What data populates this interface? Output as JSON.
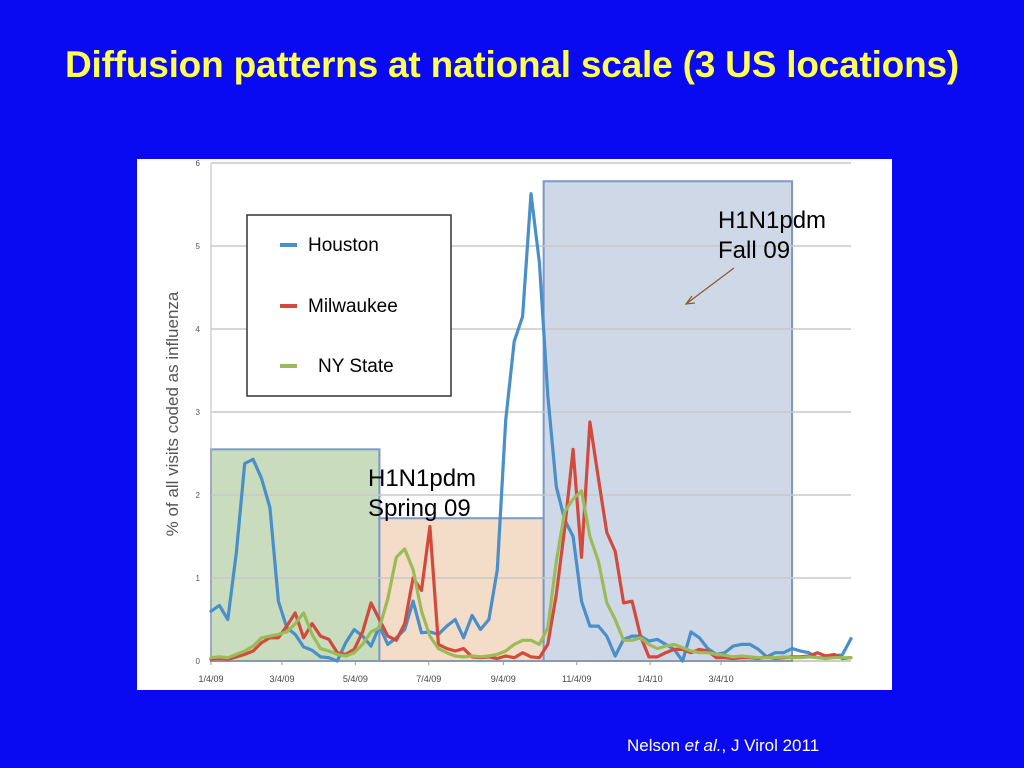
{
  "slide": {
    "title": "Diffusion patterns at national scale (3 US locations)",
    "background_color": "#0a0af2",
    "title_color": "#ffff55"
  },
  "annotations": {
    "fall_line1": "H1N1pdm",
    "fall_line2": "Fall 09",
    "spring_line1": "H1N1pdm",
    "spring_line2": "Spring 09"
  },
  "citation": {
    "author": "Nelson ",
    "etal": "et al.",
    "rest": ", J Virol 2011"
  },
  "chart_data": {
    "type": "line",
    "ylabel": "% of all visits coded as influenza",
    "xlabel": "",
    "ylim": [
      0,
      6
    ],
    "yticks": [
      0,
      1,
      2,
      3,
      4,
      5,
      6
    ],
    "x_tick_labels": [
      "1/4/09",
      "3/4/09",
      "5/4/09",
      "7/4/09",
      "9/4/09",
      "11/4/09",
      "1/4/10",
      "3/4/10"
    ],
    "x_tick_weeks": [
      0,
      8.43,
      17.14,
      25.86,
      34.71,
      43.43,
      52.14,
      60.57
    ],
    "x_unit": "week since 1/4/09",
    "grid": true,
    "legend_position": "top-left",
    "shaded_periods": [
      {
        "start_week": 0,
        "end_week": 20,
        "top_value": 2.55,
        "color": "#c9dcbe",
        "border": "#7b98c6"
      },
      {
        "start_week": 20,
        "end_week": 39.5,
        "top_value": 1.72,
        "color": "#f3dcc8",
        "border": "#7b98c6"
      },
      {
        "start_week": 39.5,
        "end_week": 69,
        "top_value": 5.78,
        "color": "#cfd8e6",
        "border": "#7b98c6"
      }
    ],
    "series": [
      {
        "name": "Houston",
        "color": "#4a8fc8",
        "x": [
          0,
          1,
          2,
          3,
          4,
          5,
          6,
          7,
          8,
          9,
          10,
          11,
          12,
          13,
          14,
          15,
          16,
          17,
          18,
          19,
          20,
          21,
          22,
          23,
          24,
          25,
          26,
          27,
          28,
          29,
          30,
          31,
          32,
          33,
          34,
          35,
          36,
          37,
          38,
          39,
          40,
          41,
          42,
          43,
          44,
          45,
          46,
          47,
          48,
          49,
          50,
          51,
          52,
          53,
          54,
          55,
          56,
          57,
          58,
          59,
          60,
          61,
          62,
          63,
          64,
          65,
          66,
          67,
          68,
          69,
          70,
          71,
          72,
          73,
          74,
          75,
          76
        ],
        "y": [
          0.6,
          0.67,
          0.5,
          1.3,
          2.38,
          2.43,
          2.2,
          1.85,
          0.72,
          0.4,
          0.32,
          0.17,
          0.13,
          0.05,
          0.04,
          0.0,
          0.22,
          0.38,
          0.3,
          0.18,
          0.42,
          0.2,
          0.28,
          0.38,
          0.72,
          0.34,
          0.35,
          0.32,
          0.42,
          0.5,
          0.28,
          0.55,
          0.38,
          0.5,
          1.1,
          2.9,
          3.85,
          4.15,
          5.63,
          4.8,
          3.2,
          2.1,
          1.7,
          1.5,
          0.72,
          0.42,
          0.42,
          0.3,
          0.06,
          0.26,
          0.3,
          0.3,
          0.24,
          0.26,
          0.2,
          0.14,
          0.0,
          0.35,
          0.28,
          0.15,
          0.08,
          0.1,
          0.18,
          0.2,
          0.2,
          0.14,
          0.05,
          0.1,
          0.1,
          0.15,
          0.12,
          0.1,
          0.04,
          0.04,
          0.06,
          0.08,
          0.27
        ]
      },
      {
        "name": "Milwaukee",
        "color": "#d24a3e",
        "x": [
          0,
          1,
          2,
          3,
          4,
          5,
          6,
          7,
          8,
          9,
          10,
          11,
          12,
          13,
          14,
          15,
          16,
          17,
          18,
          19,
          20,
          21,
          22,
          23,
          24,
          25,
          26,
          27,
          28,
          29,
          30,
          31,
          32,
          33,
          34,
          35,
          36,
          37,
          38,
          39,
          40,
          41,
          42,
          43,
          44,
          45,
          46,
          47,
          48,
          49,
          50,
          51,
          52,
          53,
          54,
          55,
          56,
          57,
          58,
          59,
          60,
          61,
          62,
          63,
          64,
          65,
          66,
          67,
          68,
          69,
          70,
          71,
          72,
          73,
          74,
          75,
          76
        ],
        "y": [
          0.02,
          0.03,
          0.02,
          0.05,
          0.08,
          0.12,
          0.22,
          0.28,
          0.28,
          0.42,
          0.58,
          0.28,
          0.45,
          0.3,
          0.26,
          0.1,
          0.08,
          0.14,
          0.35,
          0.7,
          0.5,
          0.3,
          0.25,
          0.45,
          1.0,
          0.85,
          1.62,
          0.2,
          0.15,
          0.12,
          0.15,
          0.05,
          0.04,
          0.05,
          0.03,
          0.06,
          0.04,
          0.1,
          0.05,
          0.04,
          0.2,
          0.8,
          1.6,
          2.55,
          1.25,
          2.88,
          2.2,
          1.55,
          1.32,
          0.7,
          0.72,
          0.3,
          0.05,
          0.05,
          0.1,
          0.14,
          0.14,
          0.1,
          0.14,
          0.12,
          0.04,
          0.04,
          0.03,
          0.04,
          0.04,
          0.03,
          0.05,
          0.03,
          0.04,
          0.05,
          0.05,
          0.06,
          0.1,
          0.06,
          0.08,
          0.03,
          0.04
        ]
      },
      {
        "name": "NY State",
        "color": "#9bbb59",
        "x": [
          0,
          1,
          2,
          3,
          4,
          5,
          6,
          7,
          8,
          9,
          10,
          11,
          12,
          13,
          14,
          15,
          16,
          17,
          18,
          19,
          20,
          21,
          22,
          23,
          24,
          25,
          26,
          27,
          28,
          29,
          30,
          31,
          32,
          33,
          34,
          35,
          36,
          37,
          38,
          39,
          40,
          41,
          42,
          43,
          44,
          45,
          46,
          47,
          48,
          49,
          50,
          51,
          52,
          53,
          54,
          55,
          56,
          57,
          58,
          59,
          60,
          61,
          62,
          63,
          64,
          65,
          66,
          67,
          68,
          69,
          70,
          71,
          72,
          73,
          74,
          75,
          76
        ],
        "y": [
          0.04,
          0.05,
          0.04,
          0.08,
          0.12,
          0.18,
          0.28,
          0.3,
          0.32,
          0.35,
          0.45,
          0.58,
          0.32,
          0.15,
          0.12,
          0.08,
          0.06,
          0.1,
          0.2,
          0.35,
          0.4,
          0.75,
          1.25,
          1.35,
          1.1,
          0.6,
          0.3,
          0.15,
          0.1,
          0.06,
          0.05,
          0.06,
          0.05,
          0.06,
          0.08,
          0.12,
          0.2,
          0.25,
          0.25,
          0.2,
          0.4,
          1.2,
          1.8,
          1.95,
          2.05,
          1.5,
          1.2,
          0.7,
          0.5,
          0.25,
          0.25,
          0.28,
          0.2,
          0.15,
          0.18,
          0.2,
          0.16,
          0.12,
          0.1,
          0.1,
          0.08,
          0.07,
          0.05,
          0.06,
          0.05,
          0.04,
          0.04,
          0.04,
          0.05,
          0.04,
          0.04,
          0.05,
          0.04,
          0.03,
          0.04,
          0.04,
          0.04
        ]
      }
    ]
  }
}
